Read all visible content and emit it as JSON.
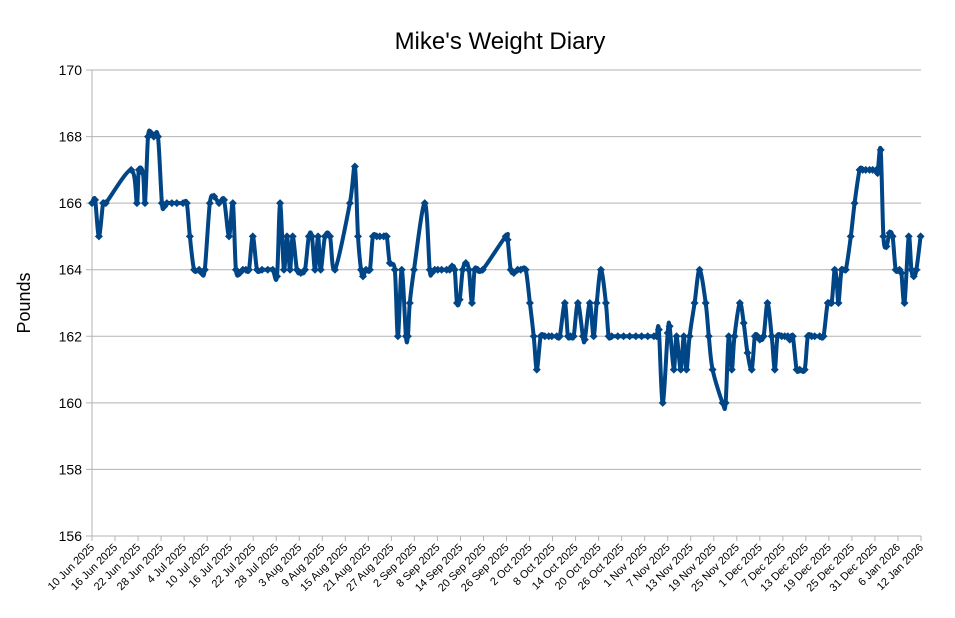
{
  "chart_data": {
    "type": "line",
    "title": "Mike's Weight Diary",
    "xlabel": "",
    "ylabel": "Pounds",
    "x_unit": "days since 10 Jun 2025",
    "xlim": [
      0,
      216
    ],
    "ylim": [
      156,
      170
    ],
    "yticks": [
      156,
      158,
      160,
      162,
      164,
      166,
      168,
      170
    ],
    "xtick_step_days": 6,
    "xtick_labels": [
      "10 Jun 2025",
      "16 Jun 2025",
      "22 Jun 2025",
      "28 Jun 2025",
      "4 Jul 2025",
      "10 Jul 2025",
      "16 Jul 2025",
      "22 Jul 2025",
      "28 Jul 2025",
      "3 Aug 2025",
      "9 Aug 2025",
      "15 Aug 2025",
      "21 Aug 2025",
      "27 Aug 2025",
      "2 Sep 2025",
      "8 Sep 2025",
      "14 Sep 2025",
      "20 Sep 2025",
      "26 Sep 2025",
      "2 Oct 2025",
      "8 Oct 2025",
      "14 Oct 2025",
      "20 Oct 2025",
      "26 Oct 2025",
      "1 Nov 2025",
      "7 Nov 2025",
      "13 Nov 2025",
      "19 Nov 2025",
      "25 Nov 2025",
      "1 Dec 2025",
      "7 Dec 2025",
      "13 Dec 2025",
      "19 Dec 2025",
      "25 Dec 2025",
      "31 Dec 2025",
      "6 Jan 2026",
      "12 Jan 2026"
    ],
    "grid": true,
    "legend": "none",
    "series_color": "#004586",
    "series": [
      {
        "name": "Weight",
        "points": [
          [
            0,
            166
          ],
          [
            0.8,
            166.1
          ],
          [
            1.8,
            165
          ],
          [
            2.9,
            166
          ],
          [
            3.6,
            166
          ],
          [
            10.2,
            167
          ],
          [
            11.7,
            166
          ],
          [
            12.2,
            167
          ],
          [
            13.3,
            166.9
          ],
          [
            13.8,
            166
          ],
          [
            14.6,
            168
          ],
          [
            15.4,
            168.1
          ],
          [
            16.1,
            168
          ],
          [
            17.2,
            168
          ],
          [
            18.2,
            166
          ],
          [
            18.8,
            165.9
          ],
          [
            19.5,
            166
          ],
          [
            20.8,
            166
          ],
          [
            22.1,
            166
          ],
          [
            23.7,
            166
          ],
          [
            24.7,
            166
          ],
          [
            25.5,
            165
          ],
          [
            26.6,
            164
          ],
          [
            27.9,
            164
          ],
          [
            28.6,
            163.9
          ],
          [
            29.4,
            164
          ],
          [
            30.7,
            166
          ],
          [
            31.8,
            166.2
          ],
          [
            33.1,
            166
          ],
          [
            34.4,
            166.1
          ],
          [
            35.7,
            165
          ],
          [
            36.7,
            166
          ],
          [
            37.5,
            164
          ],
          [
            38.5,
            163.9
          ],
          [
            39.3,
            164
          ],
          [
            40.1,
            164
          ],
          [
            40.9,
            164
          ],
          [
            41.9,
            165
          ],
          [
            43.0,
            164
          ],
          [
            44.3,
            164
          ],
          [
            45.8,
            164
          ],
          [
            47.1,
            164
          ],
          [
            48.2,
            163.8
          ],
          [
            49.0,
            166
          ],
          [
            50.0,
            164
          ],
          [
            50.8,
            165
          ],
          [
            51.6,
            164
          ],
          [
            52.3,
            165
          ],
          [
            53.4,
            164
          ],
          [
            54.4,
            163.9
          ],
          [
            55.5,
            164
          ],
          [
            56.5,
            165
          ],
          [
            57.3,
            165
          ],
          [
            58.1,
            164
          ],
          [
            58.9,
            165
          ],
          [
            59.6,
            164
          ],
          [
            60.7,
            165
          ],
          [
            62.0,
            165
          ],
          [
            63.3,
            164
          ],
          [
            67.2,
            166
          ],
          [
            68.5,
            167.1
          ],
          [
            69.3,
            165
          ],
          [
            70.1,
            164
          ],
          [
            70.6,
            163.8
          ],
          [
            71.4,
            164
          ],
          [
            72.4,
            164
          ],
          [
            73.2,
            165
          ],
          [
            74.2,
            165
          ],
          [
            75.0,
            165
          ],
          [
            76.0,
            165
          ],
          [
            76.8,
            165
          ],
          [
            77.6,
            164.2
          ],
          [
            78.9,
            164
          ],
          [
            79.7,
            162
          ],
          [
            80.7,
            164
          ],
          [
            81.8,
            162
          ],
          [
            82.3,
            162
          ],
          [
            82.8,
            163
          ],
          [
            83.9,
            164
          ],
          [
            86.7,
            166
          ],
          [
            88.0,
            164
          ],
          [
            88.5,
            163.9
          ],
          [
            89.3,
            164
          ],
          [
            90.1,
            164
          ],
          [
            91.1,
            164
          ],
          [
            92.4,
            164
          ],
          [
            93.2,
            164
          ],
          [
            93.8,
            164.1
          ],
          [
            94.5,
            164
          ],
          [
            95.1,
            163
          ],
          [
            95.8,
            163.1
          ],
          [
            96.6,
            164
          ],
          [
            97.4,
            164.2
          ],
          [
            98.2,
            164
          ],
          [
            99.0,
            163
          ],
          [
            99.7,
            164
          ],
          [
            100.5,
            164
          ],
          [
            101.8,
            164
          ],
          [
            107.8,
            165
          ],
          [
            108.3,
            164.9
          ],
          [
            109.1,
            164
          ],
          [
            109.9,
            163.9
          ],
          [
            110.9,
            164
          ],
          [
            111.7,
            164
          ],
          [
            113.0,
            164
          ],
          [
            114.1,
            163
          ],
          [
            115.1,
            162
          ],
          [
            115.9,
            161
          ],
          [
            116.9,
            162
          ],
          [
            118.0,
            162
          ],
          [
            119.0,
            162
          ],
          [
            119.8,
            162
          ],
          [
            121.1,
            162
          ],
          [
            121.9,
            162
          ],
          [
            123.2,
            163
          ],
          [
            124.0,
            162
          ],
          [
            124.7,
            162
          ],
          [
            125.5,
            162
          ],
          [
            126.6,
            163
          ],
          [
            127.9,
            162
          ],
          [
            128.4,
            161.9
          ],
          [
            129.7,
            163
          ],
          [
            130.7,
            162
          ],
          [
            131.5,
            163
          ],
          [
            132.6,
            164
          ],
          [
            133.9,
            163
          ],
          [
            134.6,
            162
          ],
          [
            135.4,
            162
          ],
          [
            137.0,
            162
          ],
          [
            138.5,
            162
          ],
          [
            140.1,
            162
          ],
          [
            141.7,
            162
          ],
          [
            143.2,
            162
          ],
          [
            144.8,
            162
          ],
          [
            146.4,
            162
          ],
          [
            147.1,
            162
          ],
          [
            147.7,
            162.2
          ],
          [
            148.7,
            160
          ],
          [
            150.0,
            162.1
          ],
          [
            150.5,
            162.3
          ],
          [
            151.6,
            161
          ],
          [
            152.3,
            162
          ],
          [
            153.4,
            161
          ],
          [
            154.2,
            162
          ],
          [
            154.9,
            161
          ],
          [
            155.7,
            162
          ],
          [
            157.0,
            163
          ],
          [
            158.3,
            164
          ],
          [
            159.9,
            163
          ],
          [
            160.7,
            162
          ],
          [
            161.7,
            161
          ],
          [
            164.3,
            160
          ],
          [
            165.1,
            160
          ],
          [
            165.9,
            162
          ],
          [
            166.7,
            161
          ],
          [
            167.4,
            162
          ],
          [
            168.8,
            163
          ],
          [
            169.8,
            162.4
          ],
          [
            170.8,
            161.5
          ],
          [
            171.9,
            161
          ],
          [
            172.7,
            162
          ],
          [
            173.4,
            162
          ],
          [
            174.0,
            161.9
          ],
          [
            175.0,
            162
          ],
          [
            176.0,
            163
          ],
          [
            177.1,
            162
          ],
          [
            177.9,
            161
          ],
          [
            178.6,
            162
          ],
          [
            179.7,
            162
          ],
          [
            180.5,
            162
          ],
          [
            181.3,
            162
          ],
          [
            181.8,
            161.9
          ],
          [
            182.6,
            162
          ],
          [
            183.6,
            161
          ],
          [
            184.4,
            161
          ],
          [
            185.7,
            161
          ],
          [
            186.5,
            162
          ],
          [
            187.5,
            162
          ],
          [
            188.3,
            162
          ],
          [
            189.6,
            162
          ],
          [
            190.6,
            162
          ],
          [
            191.7,
            163
          ],
          [
            192.7,
            163
          ],
          [
            193.5,
            164
          ],
          [
            194.0,
            163.7
          ],
          [
            194.5,
            163
          ],
          [
            195.3,
            164
          ],
          [
            196.4,
            164
          ],
          [
            197.7,
            165
          ],
          [
            198.7,
            166
          ],
          [
            200.0,
            167
          ],
          [
            200.8,
            167
          ],
          [
            201.6,
            167
          ],
          [
            202.6,
            167
          ],
          [
            203.4,
            167
          ],
          [
            204.4,
            167
          ],
          [
            204.7,
            166.9
          ],
          [
            205.5,
            167.6
          ],
          [
            206.2,
            165
          ],
          [
            207.0,
            164.7
          ],
          [
            207.8,
            165.1
          ],
          [
            208.6,
            165
          ],
          [
            209.4,
            164
          ],
          [
            210.4,
            164
          ],
          [
            210.9,
            163.9
          ],
          [
            211.7,
            163
          ],
          [
            212.8,
            165
          ],
          [
            213.5,
            164
          ],
          [
            214.1,
            163.8
          ],
          [
            214.8,
            164
          ],
          [
            215.9,
            165
          ]
        ]
      }
    ]
  }
}
